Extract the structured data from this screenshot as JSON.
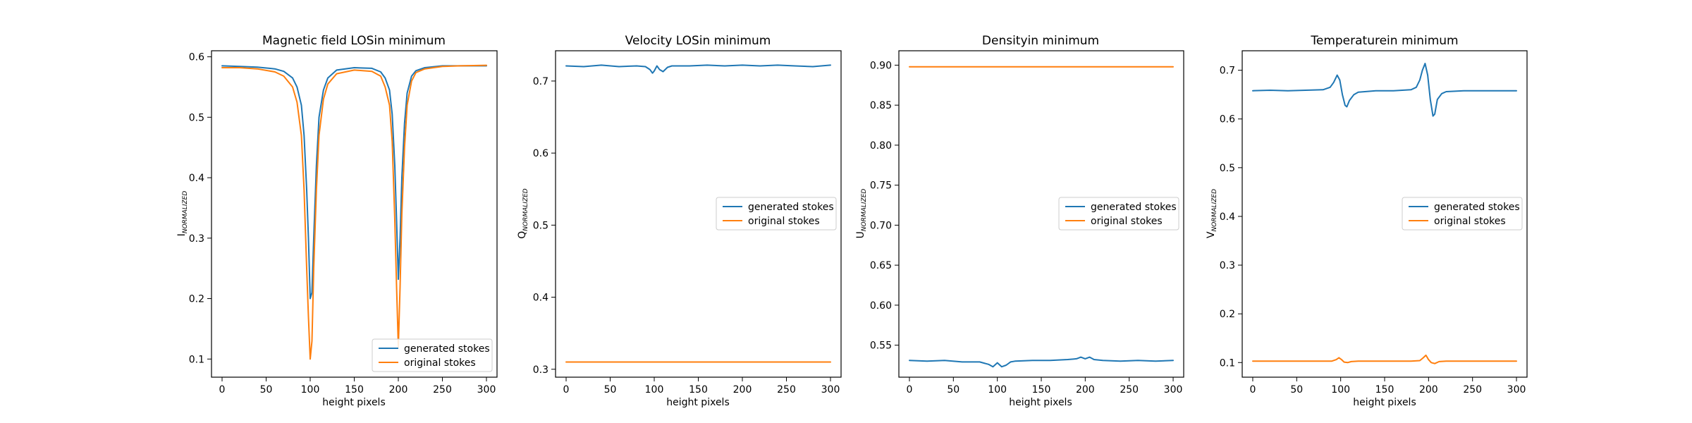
{
  "colors": {
    "generated": "#1f77b4",
    "original": "#ff7f0e"
  },
  "chart_data": [
    {
      "type": "line",
      "title": "Magnetic field LOSin minimum",
      "xlabel": "height pixels",
      "ylabel_main": "I",
      "ylabel_sub": "NORMALIZED",
      "xlim": [
        -12,
        312
      ],
      "ylim": [
        0.07,
        0.61
      ],
      "xticks": [
        0,
        50,
        100,
        150,
        200,
        250,
        300
      ],
      "yticks": [
        0.1,
        0.2,
        0.3,
        0.4,
        0.5,
        0.6
      ],
      "ytick_labels": [
        "0.1",
        "0.2",
        "0.3",
        "0.4",
        "0.5",
        "0.6"
      ],
      "legend_position": "lower-right",
      "series": [
        {
          "name": "generated stokes",
          "color": "#1f77b4",
          "x": [
            0,
            20,
            40,
            60,
            70,
            80,
            85,
            90,
            93,
            96,
            98,
            100,
            102,
            104,
            107,
            110,
            115,
            120,
            130,
            150,
            170,
            180,
            185,
            190,
            193,
            196,
            198,
            200,
            202,
            204,
            207,
            210,
            215,
            220,
            230,
            250,
            270,
            300
          ],
          "y": [
            0.585,
            0.584,
            0.583,
            0.58,
            0.576,
            0.565,
            0.55,
            0.52,
            0.47,
            0.38,
            0.3,
            0.2,
            0.21,
            0.3,
            0.42,
            0.5,
            0.545,
            0.565,
            0.578,
            0.582,
            0.581,
            0.575,
            0.565,
            0.545,
            0.505,
            0.42,
            0.33,
            0.232,
            0.3,
            0.4,
            0.49,
            0.54,
            0.568,
            0.577,
            0.582,
            0.585,
            0.585,
            0.585
          ]
        },
        {
          "name": "original stokes",
          "color": "#ff7f0e",
          "x": [
            0,
            20,
            40,
            60,
            70,
            80,
            85,
            90,
            93,
            96,
            98,
            100,
            102,
            104,
            107,
            110,
            115,
            120,
            130,
            150,
            170,
            180,
            185,
            190,
            193,
            196,
            198,
            200,
            202,
            204,
            207,
            210,
            215,
            220,
            230,
            250,
            270,
            300
          ],
          "y": [
            0.582,
            0.582,
            0.58,
            0.575,
            0.568,
            0.55,
            0.525,
            0.47,
            0.38,
            0.25,
            0.17,
            0.1,
            0.13,
            0.25,
            0.38,
            0.47,
            0.53,
            0.555,
            0.572,
            0.578,
            0.576,
            0.568,
            0.55,
            0.52,
            0.46,
            0.33,
            0.22,
            0.12,
            0.22,
            0.34,
            0.45,
            0.52,
            0.56,
            0.574,
            0.58,
            0.584,
            0.585,
            0.586
          ]
        }
      ]
    },
    {
      "type": "line",
      "title": "Velocity LOSin minimum",
      "xlabel": "height pixels",
      "ylabel_main": "Q",
      "ylabel_sub": "NORMALIZED",
      "xlim": [
        -12,
        312
      ],
      "ylim": [
        0.289,
        0.742
      ],
      "xticks": [
        0,
        50,
        100,
        150,
        200,
        250,
        300
      ],
      "yticks": [
        0.3,
        0.4,
        0.5,
        0.6,
        0.7
      ],
      "ytick_labels": [
        "0.3",
        "0.4",
        "0.5",
        "0.6",
        "0.7"
      ],
      "legend_position": "center-right",
      "series": [
        {
          "name": "generated stokes",
          "color": "#1f77b4",
          "x": [
            0,
            20,
            40,
            60,
            80,
            90,
            95,
            98,
            100,
            103,
            106,
            110,
            115,
            120,
            140,
            160,
            180,
            200,
            220,
            240,
            260,
            280,
            300
          ],
          "y": [
            0.721,
            0.72,
            0.722,
            0.72,
            0.721,
            0.72,
            0.716,
            0.711,
            0.714,
            0.721,
            0.716,
            0.713,
            0.719,
            0.721,
            0.721,
            0.722,
            0.721,
            0.722,
            0.721,
            0.722,
            0.721,
            0.72,
            0.722
          ]
        },
        {
          "name": "original stokes",
          "color": "#ff7f0e",
          "x": [
            0,
            300
          ],
          "y": [
            0.31,
            0.31
          ]
        }
      ]
    },
    {
      "type": "line",
      "title": "Densityin minimum",
      "xlabel": "height pixels",
      "ylabel_main": "U",
      "ylabel_sub": "NORMALIZED",
      "xlim": [
        -12,
        312
      ],
      "ylim": [
        0.51,
        0.918
      ],
      "xticks": [
        0,
        50,
        100,
        150,
        200,
        250,
        300
      ],
      "yticks": [
        0.55,
        0.6,
        0.65,
        0.7,
        0.75,
        0.8,
        0.85,
        0.9
      ],
      "ytick_labels": [
        "0.55",
        "0.60",
        "0.65",
        "0.70",
        "0.75",
        "0.80",
        "0.85",
        "0.90"
      ],
      "legend_position": "center-right",
      "series": [
        {
          "name": "generated stokes",
          "color": "#1f77b4",
          "x": [
            0,
            20,
            40,
            60,
            80,
            90,
            95,
            100,
            105,
            110,
            115,
            120,
            140,
            160,
            180,
            190,
            195,
            200,
            205,
            210,
            220,
            240,
            260,
            280,
            300
          ],
          "y": [
            0.531,
            0.53,
            0.531,
            0.529,
            0.529,
            0.526,
            0.523,
            0.528,
            0.523,
            0.525,
            0.529,
            0.53,
            0.531,
            0.531,
            0.532,
            0.533,
            0.535,
            0.533,
            0.535,
            0.532,
            0.531,
            0.53,
            0.531,
            0.53,
            0.531
          ]
        },
        {
          "name": "original stokes",
          "color": "#ff7f0e",
          "x": [
            0,
            300
          ],
          "y": [
            0.898,
            0.898
          ]
        }
      ]
    },
    {
      "type": "line",
      "title": "Temperaturein minimum",
      "xlabel": "height pixels",
      "ylabel_main": "V",
      "ylabel_sub": "NORMALIZED",
      "xlim": [
        -12,
        312
      ],
      "ylim": [
        0.07,
        0.74
      ],
      "xticks": [
        0,
        50,
        100,
        150,
        200,
        250,
        300
      ],
      "yticks": [
        0.1,
        0.2,
        0.3,
        0.4,
        0.5,
        0.6,
        0.7
      ],
      "ytick_labels": [
        "0.1",
        "0.2",
        "0.3",
        "0.4",
        "0.5",
        "0.6",
        "0.7"
      ],
      "legend_position": "center-right",
      "series": [
        {
          "name": "generated stokes",
          "color": "#1f77b4",
          "x": [
            0,
            20,
            40,
            60,
            80,
            88,
            92,
            96,
            99,
            102,
            105,
            107,
            110,
            115,
            120,
            140,
            160,
            180,
            186,
            190,
            193,
            196,
            199,
            202,
            205,
            207,
            210,
            215,
            220,
            240,
            260,
            280,
            300
          ],
          "y": [
            0.658,
            0.659,
            0.658,
            0.659,
            0.66,
            0.665,
            0.675,
            0.69,
            0.68,
            0.65,
            0.628,
            0.625,
            0.638,
            0.65,
            0.655,
            0.658,
            0.658,
            0.66,
            0.665,
            0.68,
            0.7,
            0.714,
            0.69,
            0.64,
            0.606,
            0.61,
            0.64,
            0.652,
            0.656,
            0.658,
            0.658,
            0.658,
            0.658
          ]
        },
        {
          "name": "original stokes",
          "color": "#ff7f0e",
          "x": [
            0,
            60,
            90,
            95,
            98,
            101,
            104,
            108,
            112,
            120,
            180,
            190,
            194,
            197,
            200,
            203,
            207,
            212,
            220,
            300
          ],
          "y": [
            0.103,
            0.103,
            0.103,
            0.106,
            0.11,
            0.106,
            0.101,
            0.1,
            0.102,
            0.103,
            0.103,
            0.104,
            0.11,
            0.115,
            0.106,
            0.1,
            0.098,
            0.102,
            0.103,
            0.103
          ]
        }
      ]
    }
  ]
}
